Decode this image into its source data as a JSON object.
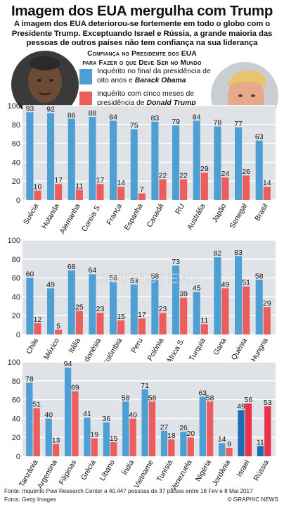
{
  "title": "Imagem dos EUA mergulha com Trump",
  "subtitle": "A imagem dos EUA deteriorou-se fortemente em todo o globo com o Presidente Trump. Exceptuando Israel e Rússia, a grande maioria das pessoas de outros países não tem confiança na sua liderança",
  "chart_heading": {
    "line1": "Confiança no Presidente dos EUA",
    "line2": "para Fazer o que Deve Ser no Mundo"
  },
  "legend": {
    "obama_text": "Inquérito no final da presidência de oito anos e ",
    "obama_name": "Barack Obama",
    "trump_text": "Inquérito com cinco meses de presidência de ",
    "trump_name": "Donald Trump"
  },
  "colors": {
    "obama": "#4e9fd3",
    "trump": "#ee5d5d",
    "obama_highlight": "#1a6cb5",
    "trump_highlight": "#e8324a",
    "bg": "#dfe3e7",
    "grid": "#ffffff"
  },
  "chart_data": [
    {
      "type": "bar",
      "ylim": [
        0,
        100
      ],
      "yticks": [
        0,
        20,
        40,
        60,
        80,
        100
      ],
      "grid": true,
      "categories": [
        "Suécia",
        "Holanda",
        "Alemanha",
        "Coreia S.",
        "França",
        "Espanha",
        "Canadá",
        "RU",
        "Austrália",
        "Japão",
        "Senegal",
        "Brasil"
      ],
      "series": [
        {
          "name": "Obama",
          "values": [
            93,
            92,
            86,
            88,
            84,
            75,
            83,
            79,
            84,
            78,
            77,
            63
          ]
        },
        {
          "name": "Trump",
          "values": [
            10,
            17,
            11,
            17,
            14,
            7,
            22,
            22,
            29,
            24,
            26,
            14
          ]
        }
      ]
    },
    {
      "type": "bar",
      "ylim": [
        0,
        100
      ],
      "yticks": [
        0,
        20,
        40,
        60,
        80,
        100
      ],
      "grid": true,
      "categories": [
        "Chile",
        "México",
        "Itália",
        "Indonésia",
        "Colômbia",
        "Peru",
        "Polónia",
        "África S.",
        "Turquia",
        "Gana",
        "Quénia",
        "Hungria"
      ],
      "series": [
        {
          "name": "Obama",
          "values": [
            60,
            49,
            68,
            64,
            56,
            53,
            58,
            73,
            45,
            82,
            83,
            58
          ]
        },
        {
          "name": "Trump",
          "values": [
            12,
            5,
            25,
            23,
            15,
            17,
            23,
            39,
            11,
            49,
            51,
            29
          ]
        }
      ]
    },
    {
      "type": "bar",
      "ylim": [
        0,
        100
      ],
      "yticks": [
        0,
        20,
        40,
        60,
        80,
        100
      ],
      "grid": true,
      "categories": [
        "Tanzânia",
        "Argentina",
        "Filipinas",
        "Grécia",
        "Líbano",
        "Índia",
        "Vietname",
        "Tunísia",
        "Venezuela",
        "Nigéria",
        "Jordânia",
        "Israel",
        "Rússia"
      ],
      "highlight": [
        "Israel",
        "Rússia"
      ],
      "series": [
        {
          "name": "Obama",
          "values": [
            78,
            40,
            94,
            41,
            36,
            58,
            71,
            27,
            26,
            63,
            14,
            49,
            11
          ]
        },
        {
          "name": "Trump",
          "values": [
            51,
            13,
            69,
            19,
            15,
            40,
            58,
            18,
            20,
            58,
            9,
            56,
            53
          ]
        }
      ]
    }
  ],
  "source": "Fonte: Inquérito Pew Research Center a 40.447 pessoas de 37 países entre 16 Fev e 8 Mai 2017",
  "photos": "Fotos: Getty Images",
  "brand": "© GRAPHIC NEWS",
  "watermark": "GRAPHIC NEWS"
}
